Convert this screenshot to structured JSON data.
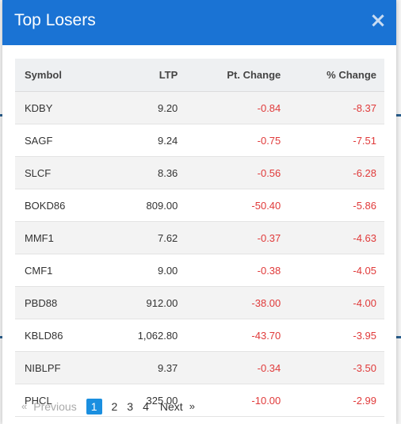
{
  "modal": {
    "title": "Top Losers",
    "close_glyph": "×"
  },
  "table": {
    "headers": {
      "symbol": "Symbol",
      "ltp": "LTP",
      "pt_change": "Pt. Change",
      "pct_change": "% Change"
    },
    "rows": [
      {
        "symbol": "KDBY",
        "ltp": "9.20",
        "pt_change": "-0.84",
        "pct_change": "-8.37"
      },
      {
        "symbol": "SAGF",
        "ltp": "9.24",
        "pt_change": "-0.75",
        "pct_change": "-7.51"
      },
      {
        "symbol": "SLCF",
        "ltp": "8.36",
        "pt_change": "-0.56",
        "pct_change": "-6.28"
      },
      {
        "symbol": "BOKD86",
        "ltp": "809.00",
        "pt_change": "-50.40",
        "pct_change": "-5.86"
      },
      {
        "symbol": "MMF1",
        "ltp": "7.62",
        "pt_change": "-0.37",
        "pct_change": "-4.63"
      },
      {
        "symbol": "CMF1",
        "ltp": "9.00",
        "pt_change": "-0.38",
        "pct_change": "-4.05"
      },
      {
        "symbol": "PBD88",
        "ltp": "912.00",
        "pt_change": "-38.00",
        "pct_change": "-4.00"
      },
      {
        "symbol": "KBLD86",
        "ltp": "1,062.80",
        "pt_change": "-43.70",
        "pct_change": "-3.95"
      },
      {
        "symbol": "NIBLPF",
        "ltp": "9.37",
        "pt_change": "-0.34",
        "pct_change": "-3.50"
      },
      {
        "symbol": "PHCL",
        "ltp": "325.00",
        "pt_change": "-10.00",
        "pct_change": "-2.99"
      }
    ]
  },
  "pagination": {
    "prev_arrow": "«",
    "prev_label": "Previous",
    "pages": [
      "1",
      "2",
      "3",
      "4"
    ],
    "current_page": "1",
    "next_label": "Next",
    "next_arrow": "»"
  },
  "colors": {
    "header_bg": "#1a73d4",
    "negative": "#e03a3a",
    "page_active": "#1a8fe0"
  }
}
